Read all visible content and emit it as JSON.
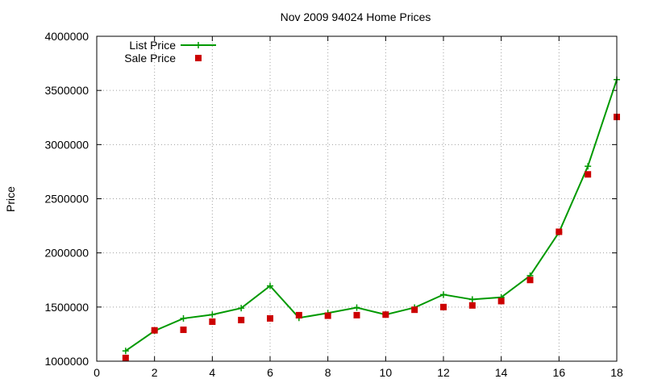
{
  "chart_data": {
    "type": "line",
    "title": "Nov 2009 94024 Home Prices",
    "ylabel": "Price",
    "xlabel": "",
    "xlim": [
      0,
      18
    ],
    "ylim": [
      1000000,
      4000000
    ],
    "xticks": [
      0,
      2,
      4,
      6,
      8,
      10,
      12,
      14,
      16,
      18
    ],
    "yticks": [
      1000000,
      1500000,
      2000000,
      2500000,
      3000000,
      3500000,
      4000000
    ],
    "xtick_labels": [
      "0",
      "2",
      "4",
      "6",
      "8",
      "10",
      "12",
      "14",
      "16",
      "18"
    ],
    "ytick_labels": [
      "1000000",
      "1500000",
      "2000000",
      "2500000",
      "3000000",
      "3500000",
      "4000000"
    ],
    "grid": true,
    "legend_position": "top-left",
    "x": [
      1,
      2,
      3,
      4,
      5,
      6,
      7,
      8,
      9,
      10,
      11,
      12,
      13,
      14,
      15,
      16,
      17,
      18
    ],
    "series": [
      {
        "name": "List Price",
        "style": "lines+points",
        "marker": "plus",
        "color": "#009900",
        "values": [
          1095000,
          1280000,
          1395000,
          1430000,
          1490000,
          1695000,
          1400000,
          1445000,
          1495000,
          1430000,
          1495000,
          1615000,
          1570000,
          1590000,
          1790000,
          2190000,
          2800000,
          3600000
        ]
      },
      {
        "name": "Sale Price",
        "style": "points",
        "marker": "square",
        "color": "#cc0000",
        "values": [
          1030000,
          1285000,
          1290000,
          1365000,
          1380000,
          1395000,
          1425000,
          1420000,
          1425000,
          1430000,
          1475000,
          1500000,
          1515000,
          1555000,
          1750000,
          2195000,
          2725000,
          3255000
        ]
      }
    ]
  }
}
